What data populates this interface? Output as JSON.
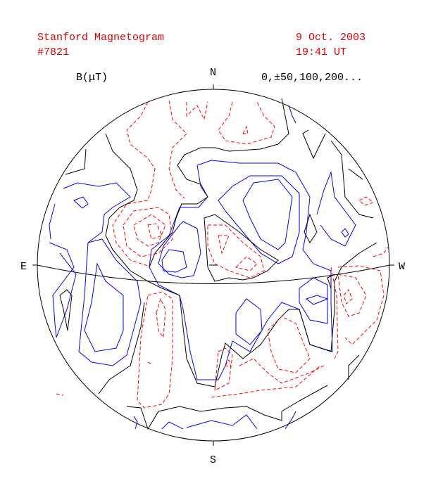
{
  "header": {
    "title": "Stanford Magnetogram",
    "number": "#7821",
    "date": "9 Oct. 2003",
    "time": "19:41 UT"
  },
  "legend": {
    "unit": "B(μT)",
    "levels": "0,±50,100,200..."
  },
  "compass": {
    "north": "N",
    "south": "S",
    "east": "E",
    "west": "W"
  }
}
